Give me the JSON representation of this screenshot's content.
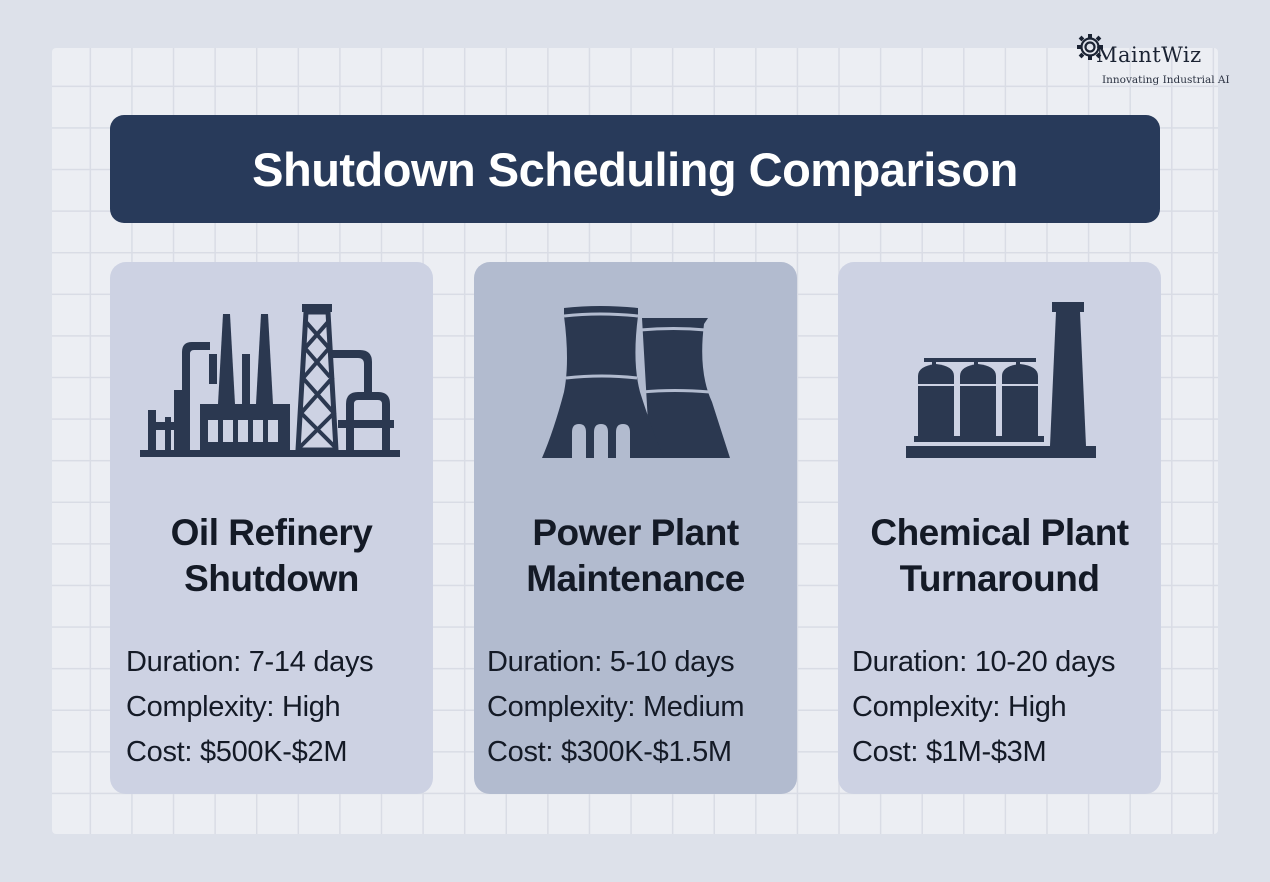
{
  "brand": {
    "name": "MaintWiz",
    "tagline": "Innovating Industrial AI"
  },
  "title": "Shutdown Scheduling Comparison",
  "cards": [
    {
      "icon": "oil-refinery-icon",
      "heading_line1": "Oil Refinery",
      "heading_line2": "Shutdown",
      "duration": "Duration: 7-14 days",
      "complexity": "Complexity: High",
      "cost": "Cost: $500K-$2M"
    },
    {
      "icon": "cooling-tower-icon",
      "heading_line1": "Power Plant",
      "heading_line2": "Maintenance",
      "duration": "Duration: 5-10 days",
      "complexity": "Complexity: Medium",
      "cost": "Cost: $300K-$1.5M"
    },
    {
      "icon": "chemical-plant-icon",
      "heading_line1": "Chemical Plant",
      "heading_line2": "Turnaround",
      "duration": "Duration: 10-20 days",
      "complexity": "Complexity: High",
      "cost": "Cost: $1M-$3M"
    }
  ],
  "colors": {
    "title_bar": "#283a5a",
    "card": "#cdd2e3",
    "card_highlight": "#b2bbcf",
    "icon": "#2b3850",
    "background": "#dde1ea"
  }
}
